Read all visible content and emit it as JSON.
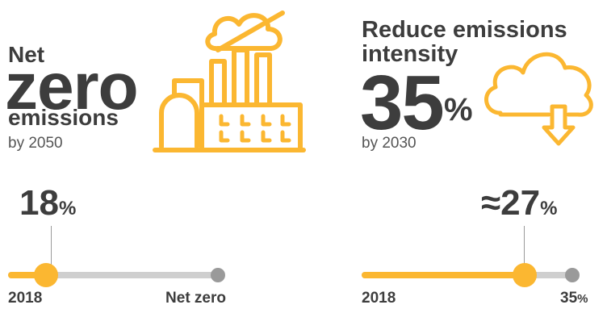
{
  "left": {
    "title_line1": "Net",
    "title_big": "zero",
    "title_line3": "emissions",
    "subtitle": "by 2050",
    "milestone_value": "18",
    "milestone_unit": "%",
    "start_label": "2018",
    "end_label": "Net zero",
    "progress_fraction": 0.18,
    "icon": "factory-icon"
  },
  "right": {
    "title_line1": "Reduce emissions",
    "title_line2": "intensity",
    "big_value": "35",
    "big_unit": "%",
    "subtitle": "by 2030",
    "milestone_prefix": "≈",
    "milestone_value": "27",
    "milestone_unit": "%",
    "start_label": "2018",
    "end_label": "35",
    "end_unit": "%",
    "progress_fraction": 0.77,
    "icon": "cloud-down-arrow-icon"
  },
  "colors": {
    "accent": "#fbb731",
    "text": "#3d3d3d",
    "track": "#cfcfcf",
    "endpoint": "#9a9a9a"
  }
}
